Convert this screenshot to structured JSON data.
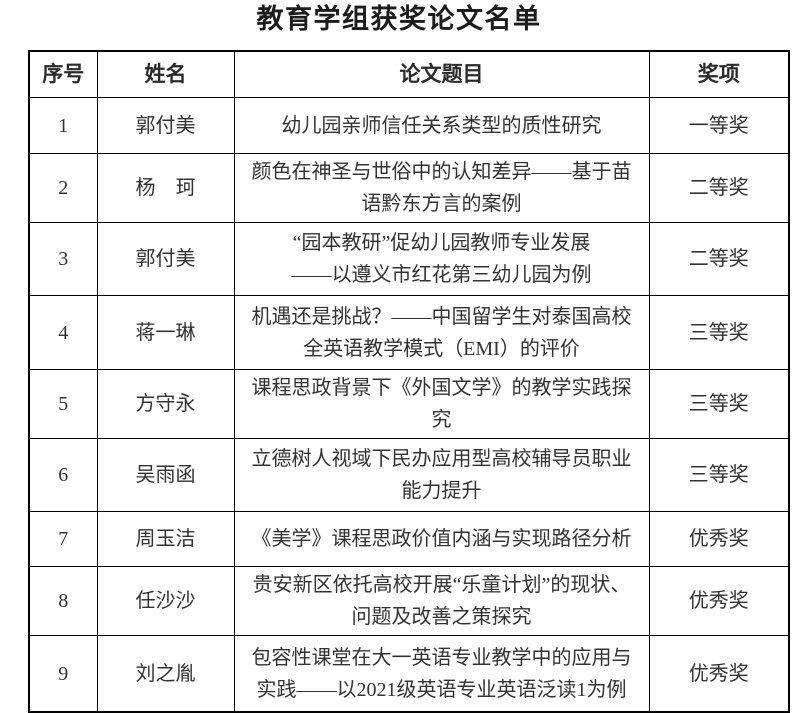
{
  "page": {
    "title": "教育学组获奖论文名单"
  },
  "table": {
    "headers": {
      "no": "序号",
      "name": "姓名",
      "paper": "论文题目",
      "award": "奖项"
    },
    "rows": [
      {
        "no": "1",
        "name": "郭付美",
        "paper": "幼儿园亲师信任关系类型的质性研究",
        "award": "一等奖"
      },
      {
        "no": "2",
        "name": "杨　珂",
        "paper": "颜色在神圣与世俗中的认知差异——基于苗语黔东方言的案例",
        "award": "二等奖"
      },
      {
        "no": "3",
        "name": "郭付美",
        "paper": "“园本教研”促幼儿园教师专业发展\n——以遵义市红花第三幼儿园为例",
        "award": "二等奖"
      },
      {
        "no": "4",
        "name": "蒋一琳",
        "paper": "机遇还是挑战？——中国留学生对泰国高校全英语教学模式（EMI）的评价",
        "award": "三等奖"
      },
      {
        "no": "5",
        "name": "方守永",
        "paper": "课程思政背景下《外国文学》的教学实践探究",
        "award": "三等奖"
      },
      {
        "no": "6",
        "name": "吴雨函",
        "paper": "立德树人视域下民办应用型高校辅导员职业能力提升",
        "award": "三等奖"
      },
      {
        "no": "7",
        "name": "周玉洁",
        "paper": "《美学》课程思政价值内涵与实现路径分析",
        "award": "优秀奖"
      },
      {
        "no": "8",
        "name": "任沙沙",
        "paper": "贵安新区依托高校开展“乐童计划”的现状、问题及改善之策探究",
        "award": "优秀奖"
      },
      {
        "no": "9",
        "name": "刘之胤",
        "paper": "包容性课堂在大一英语专业教学中的应用与实践——以2021级英语专业英语泛读1为例",
        "award": "优秀奖"
      }
    ]
  }
}
